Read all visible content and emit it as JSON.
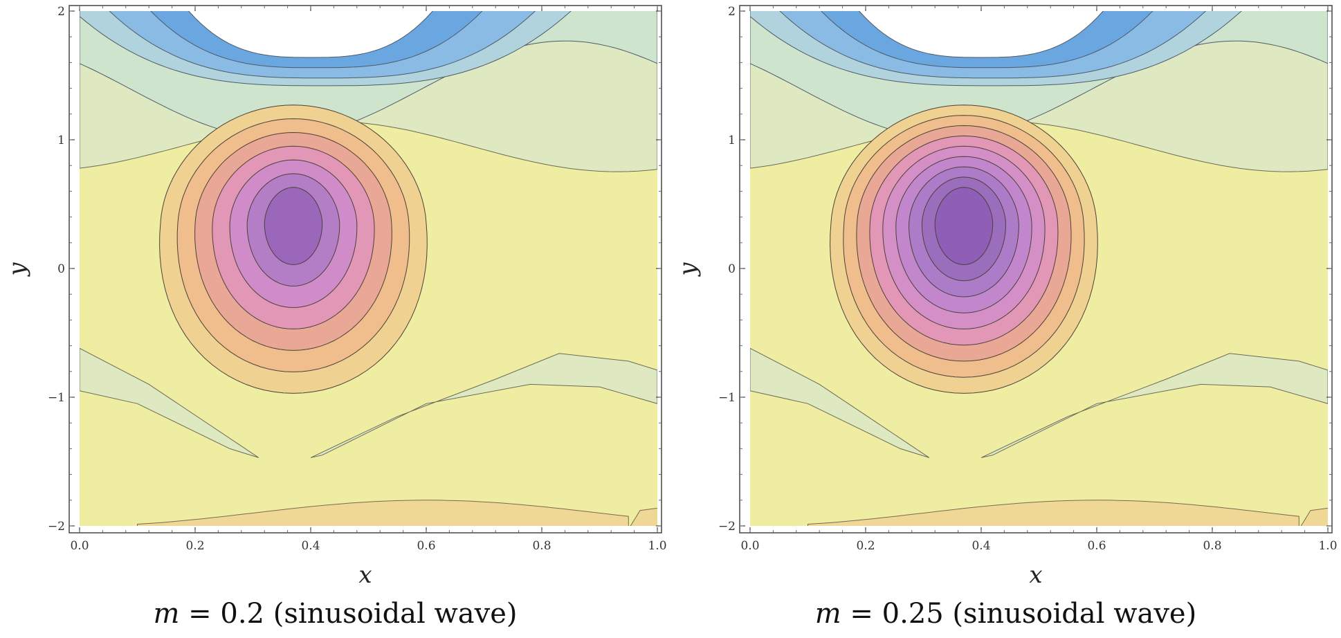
{
  "chart_data": [
    {
      "type": "contour",
      "xlabel": "x",
      "ylabel": "y",
      "xlim": [
        0.0,
        1.0
      ],
      "ylim": [
        -2,
        2
      ],
      "x_ticks": [
        "0.0",
        "0.2",
        "0.4",
        "0.6",
        "0.8",
        "1.0"
      ],
      "y_ticks": [
        "2",
        "1",
        "0",
        "−1",
        "−2"
      ],
      "caption_var": "m",
      "caption_eq": " = 0.2",
      "caption_rest": " (sinusoidal wave)",
      "m": 0.2,
      "center": [
        0.37,
        0.35
      ],
      "rings": 7,
      "fill_colors": [
        "#ecea9e",
        "#efd292",
        "#efbe8c",
        "#e9a896",
        "#e197b5",
        "#cf8cc8",
        "#b47ec6",
        "#9a67bb"
      ],
      "background_color": "#efeda2",
      "band_color": "#dfe9c1",
      "upper_colors": [
        "#cfe4cd",
        "#b1d3dd",
        "#89bbe4",
        "#6aa6df"
      ]
    },
    {
      "type": "contour",
      "xlabel": "x",
      "ylabel": "y",
      "xlim": [
        0.0,
        1.0
      ],
      "ylim": [
        -2,
        2
      ],
      "x_ticks": [
        "0.0",
        "0.2",
        "0.4",
        "0.6",
        "0.8",
        "1.0"
      ],
      "y_ticks": [
        "2",
        "1",
        "0",
        "−1",
        "−2"
      ],
      "caption_var": "m",
      "caption_eq": " = 0.25",
      "caption_rest": " (sinusoidal wave)",
      "m": 0.25,
      "center": [
        0.37,
        0.35
      ],
      "rings": 9,
      "fill_colors": [
        "#ecea9e",
        "#efd292",
        "#efbe8c",
        "#e9a896",
        "#e197b5",
        "#d38fc6",
        "#c286cc",
        "#ad7cc8",
        "#9a6dbd",
        "#8f5eb6"
      ],
      "background_color": "#efeda2",
      "band_color": "#dfe9c1",
      "upper_colors": [
        "#cfe4cd",
        "#b1d3dd",
        "#89bbe4",
        "#6aa6df"
      ]
    }
  ]
}
